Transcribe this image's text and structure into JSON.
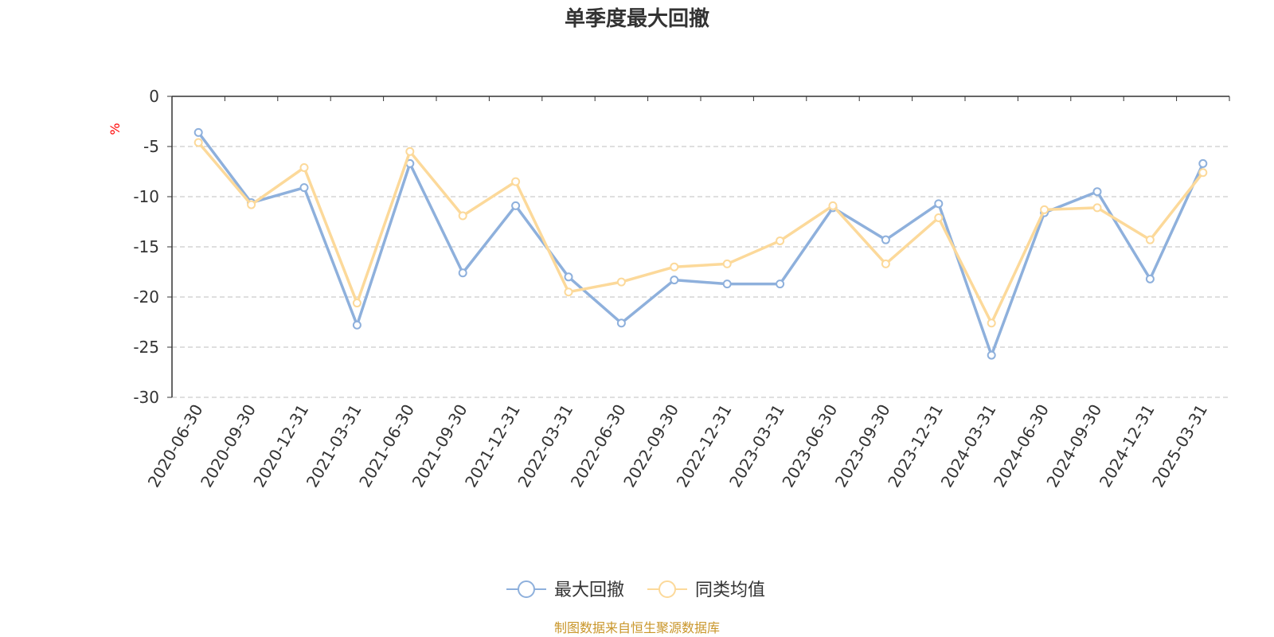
{
  "chart_data": {
    "type": "line",
    "title": "单季度最大回撤",
    "ylabel": "%",
    "xlabel": "",
    "ylim": [
      -30,
      0
    ],
    "yticks": [
      0,
      -5,
      -10,
      -15,
      -20,
      -25,
      -30
    ],
    "grid": true,
    "legend_position": "bottom-center",
    "categories": [
      "2020-06-30",
      "2020-09-30",
      "2020-12-31",
      "2021-03-31",
      "2021-06-30",
      "2021-09-30",
      "2021-12-31",
      "2022-03-31",
      "2022-06-30",
      "2022-09-30",
      "2022-12-31",
      "2023-03-31",
      "2023-06-30",
      "2023-09-30",
      "2023-12-31",
      "2024-03-31",
      "2024-06-30",
      "2024-09-30",
      "2024-12-31",
      "2025-03-31"
    ],
    "series": [
      {
        "name": "最大回撤",
        "color": "#8eb0dc",
        "values": [
          -3.6,
          -10.6,
          -9.1,
          -22.8,
          -6.7,
          -17.6,
          -10.9,
          -18.0,
          -22.6,
          -18.3,
          -18.7,
          -18.7,
          -11.1,
          -14.3,
          -10.7,
          -25.8,
          -11.6,
          -9.5,
          -18.2,
          -6.7
        ]
      },
      {
        "name": "同类均值",
        "color": "#fcd99a",
        "values": [
          -4.6,
          -10.8,
          -7.1,
          -20.6,
          -5.5,
          -11.9,
          -8.5,
          -19.5,
          -18.5,
          -17.0,
          -16.7,
          -14.4,
          -10.9,
          -16.7,
          -12.1,
          -22.6,
          -11.3,
          -11.1,
          -14.3,
          -7.6
        ]
      }
    ]
  },
  "source_text": "制图数据来自恒生聚源数据库"
}
